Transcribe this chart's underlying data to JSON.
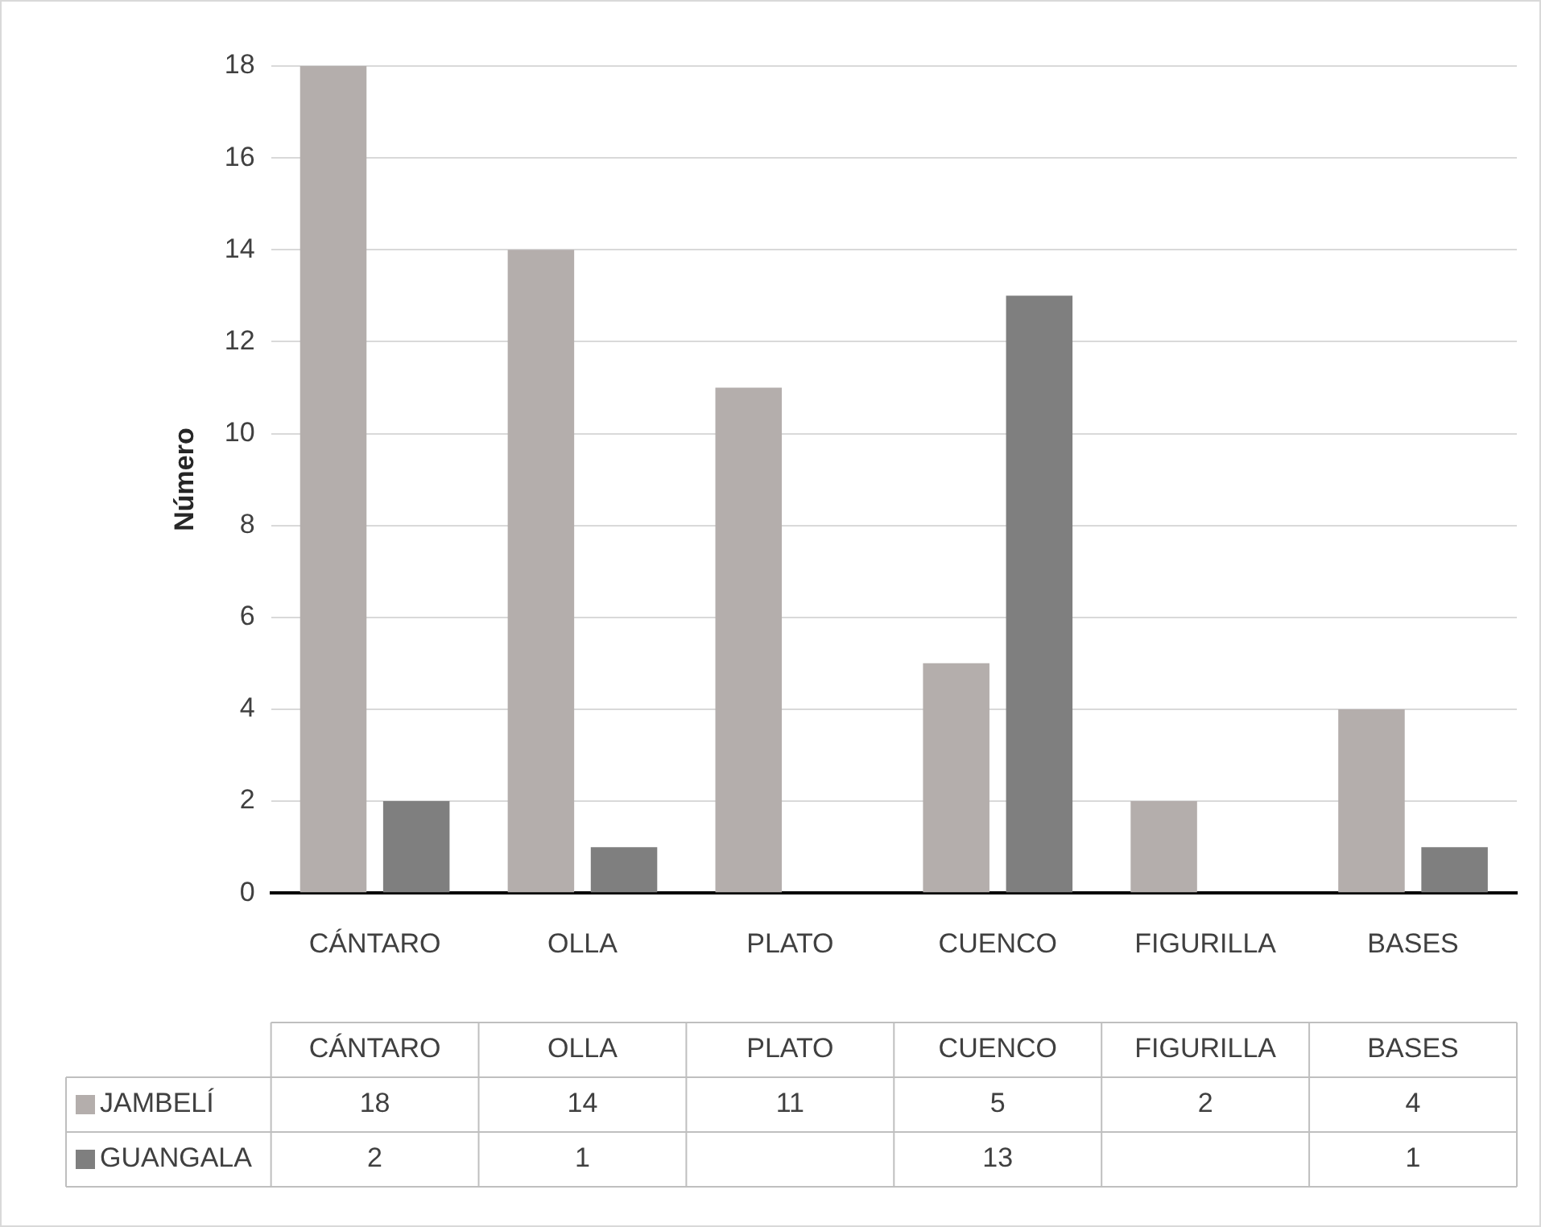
{
  "chart_data": {
    "type": "bar",
    "ylabel": "Número",
    "categories": [
      "CÁNTARO",
      "OLLA",
      "PLATO",
      "CUENCO",
      "FIGURILLA",
      "BASES"
    ],
    "series": [
      {
        "name": "JAMBELÍ",
        "color": "#b4aeac",
        "values": [
          18,
          14,
          11,
          5,
          2,
          4
        ]
      },
      {
        "name": "GUANGALA",
        "color": "#7f7f7f",
        "values": [
          2,
          1,
          null,
          13,
          null,
          1
        ]
      }
    ],
    "ylim": [
      0,
      18
    ],
    "yticks": [
      0,
      2,
      4,
      6,
      8,
      10,
      12,
      14,
      16,
      18
    ],
    "grid": "y",
    "legend": "bottom",
    "data_labels": true
  }
}
